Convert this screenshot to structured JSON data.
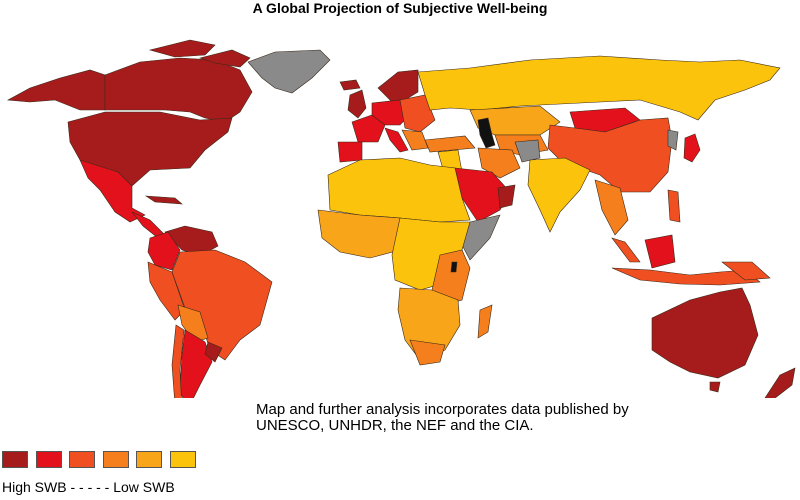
{
  "title": "A Global Projection of Subjective Well-being",
  "credit": {
    "line1": "Map and further analysis incorporates data published by",
    "line2": "UNESCO, UNHDR, the NEF and the CIA."
  },
  "legend": {
    "high_label": "High SWB",
    "dashes": "- - - - -",
    "low_label": "Low SWB",
    "colors": [
      "#a61c1c",
      "#e2111b",
      "#ef4f21",
      "#f57f1c",
      "#f8a51a",
      "#fcc30c"
    ]
  },
  "colors": {
    "no_data": "#8a8a8a",
    "no_data_dark": "#111111"
  }
}
